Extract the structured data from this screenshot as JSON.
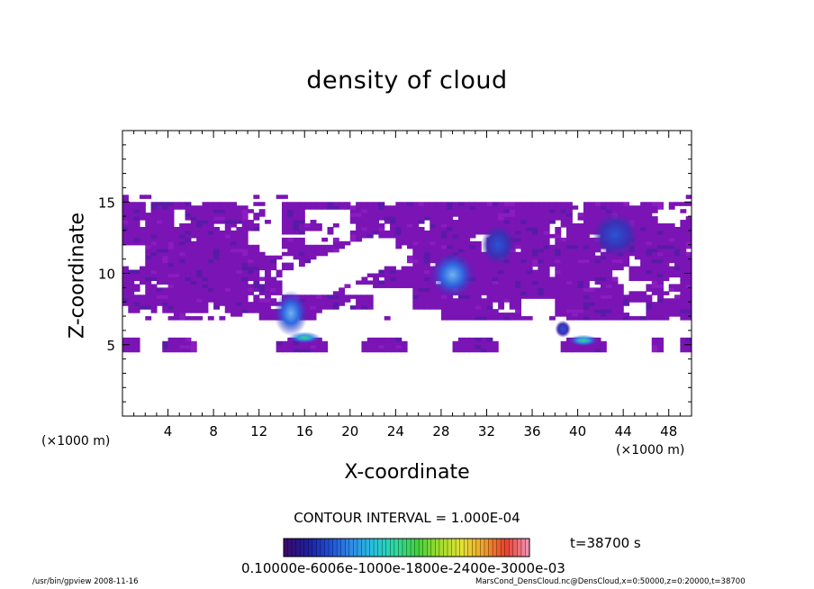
{
  "footer": {
    "left": "/usr/bin/gpview   2008-11-16",
    "right": "MarsCond_DensCloud.nc@DensCloud,x=0:50000,z=0:20000,t=38700"
  },
  "colorbar": {
    "contour_interval": "CONTOUR INTERVAL = 1.000E-04",
    "time_label": "t=38700  s",
    "tick_text": "0.10000e-6006e-1000e-1800e-2400e-3000e-03",
    "colors": [
      "#3b0a6e",
      "#1d1e9e",
      "#1f4fd6",
      "#2f8ce8",
      "#27c2de",
      "#2fd9a0",
      "#43d13c",
      "#a2dc2e",
      "#e2e236",
      "#f0a22c",
      "#e8402a",
      "#f08fb0"
    ]
  },
  "chart_data": {
    "type": "heatmap",
    "title": "density of cloud",
    "xlabel": "X-coordinate",
    "ylabel": "Z-coordinate",
    "x_unit_left": "(×1000 m)",
    "x_unit_right": "(×1000 m)",
    "xlim": [
      0,
      50
    ],
    "ylim": [
      0,
      20
    ],
    "xticks": [
      4,
      8,
      12,
      16,
      20,
      24,
      28,
      32,
      36,
      40,
      44,
      48
    ],
    "xtick_labels": [
      "4",
      "8",
      "12",
      "16",
      "20",
      "24",
      "28",
      "32",
      "36",
      "40",
      "44",
      "48"
    ],
    "yticks": [
      5,
      10,
      15
    ],
    "ytick_labels": [
      "5",
      "10",
      "15"
    ],
    "grid": false,
    "base_color": "#7a14b4",
    "cloud_regions": [
      {
        "name": "upper-cloud-layer",
        "x": [
          0,
          50
        ],
        "z": [
          7,
          15.5
        ]
      },
      {
        "name": "lower-cloud-layer",
        "x": [
          0,
          50
        ],
        "z": [
          4.6,
          5.6
        ]
      }
    ],
    "dense_cores": [
      {
        "x": 14.8,
        "z": 7.2,
        "rx": 1.5,
        "rz": 1.6,
        "level": "medium"
      },
      {
        "x": 29,
        "z": 9.9,
        "rx": 2,
        "rz": 1.6,
        "level": "medium"
      },
      {
        "x": 43.3,
        "z": 12.7,
        "rx": 2,
        "rz": 1.5,
        "level": "low-medium"
      },
      {
        "x": 33,
        "z": 12.0,
        "rx": 1.5,
        "rz": 1.4,
        "level": "low-medium"
      },
      {
        "x": 38.7,
        "z": 6.1,
        "rx": 0.7,
        "rz": 0.6,
        "level": "low-medium"
      },
      {
        "x": 16,
        "z": 5.5,
        "rx": 1.4,
        "rz": 0.4,
        "level": "high"
      },
      {
        "x": 40.5,
        "z": 5.3,
        "rx": 1.3,
        "rz": 0.4,
        "level": "high"
      }
    ]
  }
}
